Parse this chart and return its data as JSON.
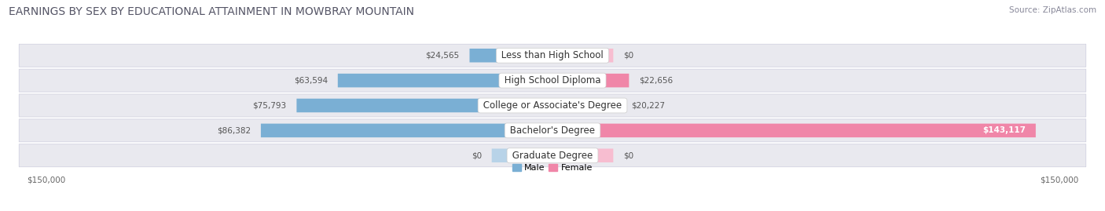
{
  "title": "EARNINGS BY SEX BY EDUCATIONAL ATTAINMENT IN MOWBRAY MOUNTAIN",
  "source": "Source: ZipAtlas.com",
  "categories": [
    "Less than High School",
    "High School Diploma",
    "College or Associate's Degree",
    "Bachelor's Degree",
    "Graduate Degree"
  ],
  "male_values": [
    24565,
    63594,
    75793,
    86382,
    0
  ],
  "female_values": [
    0,
    22656,
    20227,
    143117,
    0
  ],
  "male_labels": [
    "$24,565",
    "$63,594",
    "$75,793",
    "$86,382",
    "$0"
  ],
  "female_labels": [
    "$0",
    "$22,656",
    "$20,227",
    "$143,117",
    "$0"
  ],
  "male_color": "#7aafd4",
  "male_color_light": "#b8d3e8",
  "female_color": "#f086a8",
  "female_color_light": "#f7bdd0",
  "bar_bg_color": "#e9e9ef",
  "max_value": 150000,
  "male_legend": "Male",
  "female_legend": "Female",
  "title_fontsize": 10,
  "source_fontsize": 7.5,
  "label_fontsize": 7.5,
  "category_fontsize": 8.5,
  "axis_label_fontsize": 7.5,
  "background_color": "#ffffff",
  "zero_stub": 18000
}
